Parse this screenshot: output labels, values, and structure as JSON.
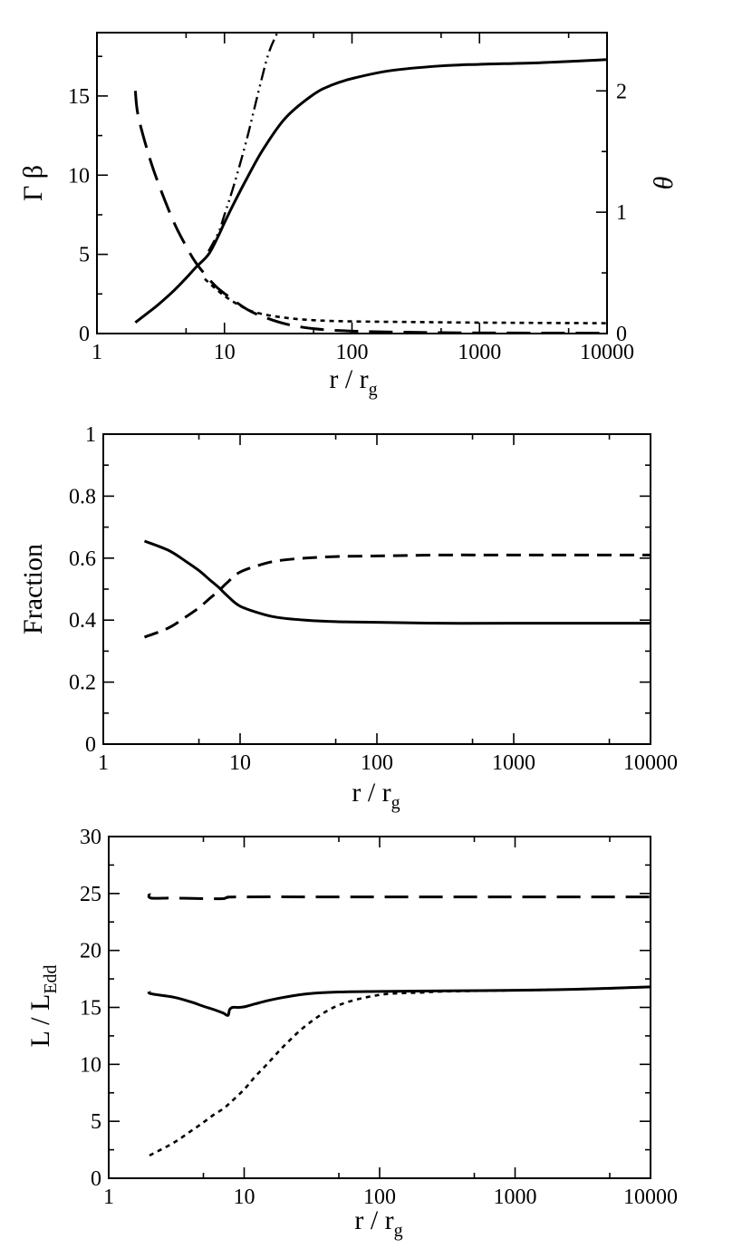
{
  "chart_data": [
    {
      "type": "line",
      "xscale": "log",
      "xlim": [
        1,
        10000
      ],
      "ylim": [
        0,
        19
      ],
      "y2lim": [
        0,
        2.48
      ],
      "xticks": [
        1,
        10,
        100,
        1000,
        10000
      ],
      "xtick_labels": [
        "1",
        "10",
        "100",
        "1000",
        "10000"
      ],
      "yticks": [
        0,
        5,
        10,
        15
      ],
      "ytick_labels": [
        "0",
        "5",
        "10",
        "15"
      ],
      "y2ticks": [
        0,
        1,
        2
      ],
      "y2tick_labels": [
        "0",
        "1",
        "2"
      ],
      "xlabel_main": "r / r",
      "xlabel_sub": "g",
      "ylabel": "Γ β",
      "y2label": "θ",
      "series": [
        {
          "name": "solid",
          "style": "solid",
          "axis": "left",
          "x": [
            2,
            2.5,
            3,
            4,
            5,
            6,
            7.5,
            9,
            10,
            12,
            15,
            20,
            30,
            50,
            70,
            100,
            200,
            500,
            1000,
            3000,
            10000
          ],
          "y": [
            0.7,
            1.3,
            1.8,
            2.7,
            3.5,
            4.2,
            5.0,
            6.2,
            7.0,
            8.3,
            9.8,
            11.6,
            13.6,
            15.1,
            15.7,
            16.1,
            16.6,
            16.9,
            17.0,
            17.1,
            17.3
          ]
        },
        {
          "name": "dash-dot-dot",
          "style": "dashdotdot",
          "axis": "left",
          "x": [
            7.5,
            9,
            10,
            12,
            15,
            18,
            22,
            26
          ],
          "y": [
            5.2,
            6.4,
            7.5,
            9.5,
            12.3,
            14.9,
            17.6,
            19
          ]
        },
        {
          "name": "long-dash",
          "style": "longdash",
          "axis": "right",
          "x": [
            2,
            2.1,
            2.5,
            3,
            4,
            5,
            6,
            8,
            10,
            15,
            20,
            30,
            50,
            100,
            300,
            1000,
            10000
          ],
          "y": [
            2.0,
            1.8,
            1.5,
            1.25,
            0.92,
            0.72,
            0.58,
            0.42,
            0.33,
            0.2,
            0.14,
            0.08,
            0.04,
            0.02,
            0.01,
            0.005,
            0.003
          ]
        },
        {
          "name": "short-dash",
          "style": "dotted",
          "axis": "right",
          "x": [
            7,
            10,
            15,
            20,
            30,
            50,
            100,
            300,
            1000,
            10000
          ],
          "y": [
            0.45,
            0.31,
            0.2,
            0.16,
            0.13,
            0.11,
            0.1,
            0.095,
            0.09,
            0.085
          ]
        }
      ]
    },
    {
      "type": "line",
      "xscale": "log",
      "xlim": [
        1,
        10000
      ],
      "ylim": [
        0,
        1
      ],
      "xticks": [
        1,
        10,
        100,
        1000,
        10000
      ],
      "xtick_labels": [
        "1",
        "10",
        "100",
        "1000",
        "10000"
      ],
      "yticks": [
        0,
        0.2,
        0.4,
        0.6,
        0.8,
        1
      ],
      "ytick_labels": [
        "0",
        "0.2",
        "0.4",
        "0.6",
        "0.8",
        "1"
      ],
      "xlabel_main": "r / r",
      "xlabel_sub": "g",
      "ylabel": "Fraction",
      "series": [
        {
          "name": "solid",
          "style": "solid",
          "x": [
            2,
            3,
            4,
            5,
            6,
            7,
            8,
            10,
            15,
            20,
            30,
            50,
            100,
            300,
            1000,
            10000
          ],
          "y": [
            0.655,
            0.625,
            0.59,
            0.56,
            0.53,
            0.505,
            0.48,
            0.445,
            0.418,
            0.407,
            0.4,
            0.395,
            0.393,
            0.39,
            0.39,
            0.39
          ]
        },
        {
          "name": "dashed",
          "style": "dashed",
          "x": [
            2,
            3,
            4,
            5,
            6,
            7,
            8,
            10,
            15,
            20,
            30,
            50,
            100,
            300,
            1000,
            10000
          ],
          "y": [
            0.345,
            0.375,
            0.41,
            0.44,
            0.47,
            0.495,
            0.52,
            0.555,
            0.582,
            0.593,
            0.6,
            0.605,
            0.607,
            0.61,
            0.61,
            0.61
          ]
        }
      ]
    },
    {
      "type": "line",
      "xscale": "log",
      "xlim": [
        1,
        10000
      ],
      "ylim": [
        0,
        30
      ],
      "xticks": [
        1,
        10,
        100,
        1000,
        10000
      ],
      "xtick_labels": [
        "1",
        "10",
        "100",
        "1000",
        "10000"
      ],
      "yticks": [
        0,
        5,
        10,
        15,
        20,
        25,
        30
      ],
      "ytick_labels": [
        "0",
        "5",
        "10",
        "15",
        "20",
        "25",
        "30"
      ],
      "xlabel_main": "r / r",
      "xlabel_sub": "g",
      "ylabel_main": "L / L",
      "ylabel_sub": "Edd",
      "series": [
        {
          "name": "long-dash",
          "style": "longdash",
          "x": [
            2,
            2.05,
            3,
            5,
            7,
            7.5,
            10,
            100,
            1000,
            10000
          ],
          "y": [
            25.0,
            24.6,
            24.6,
            24.55,
            24.55,
            24.65,
            24.7,
            24.7,
            24.7,
            24.7
          ]
        },
        {
          "name": "solid",
          "style": "solid",
          "x": [
            2,
            2.05,
            3,
            4,
            5,
            6,
            7,
            7.6,
            7.8,
            8.2,
            9,
            10,
            12,
            15,
            20,
            30,
            50,
            100,
            300,
            1000,
            3000,
            10000
          ],
          "y": [
            16.4,
            16.2,
            15.9,
            15.5,
            15.1,
            14.8,
            14.5,
            14.3,
            14.8,
            15.0,
            15.0,
            15.05,
            15.3,
            15.6,
            15.9,
            16.2,
            16.35,
            16.4,
            16.45,
            16.5,
            16.6,
            16.8
          ]
        },
        {
          "name": "short-dash",
          "style": "dotted",
          "x": [
            2,
            3,
            4,
            5,
            6,
            7,
            8,
            10,
            12,
            15,
            20,
            30,
            50,
            100,
            200,
            300,
            1000,
            3000,
            10000
          ],
          "y": [
            2.0,
            3.1,
            4.1,
            4.9,
            5.6,
            6.1,
            6.7,
            7.8,
            8.9,
            10.1,
            11.7,
            13.6,
            15.2,
            16.1,
            16.3,
            16.4,
            16.5,
            16.6,
            16.8
          ]
        }
      ]
    }
  ]
}
